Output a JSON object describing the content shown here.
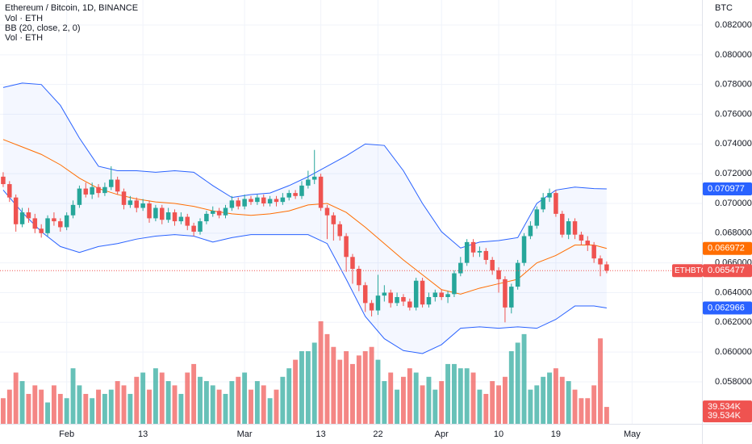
{
  "chart_data": {
    "type": "candlestick",
    "title": "Ethereum / Bitcoin, 1D, BINANCE",
    "legend": [
      "Vol · ETH",
      "BB (20, close, 2, 0)",
      "Vol · ETH"
    ],
    "symbol": "ETHBTC",
    "y_unit": "BTC",
    "up_color": "#26a69a",
    "down_color": "#ef5350",
    "xlim": [
      -0.5,
      110
    ],
    "xticks": [
      {
        "value": 10,
        "label": "Feb"
      },
      {
        "value": 22,
        "label": "13"
      },
      {
        "value": 38,
        "label": "Mar"
      },
      {
        "value": 50,
        "label": "13"
      },
      {
        "value": 59,
        "label": "22"
      },
      {
        "value": 69,
        "label": "Apr"
      },
      {
        "value": 78,
        "label": "10"
      },
      {
        "value": 87,
        "label": "19"
      },
      {
        "value": 99,
        "label": "May"
      }
    ],
    "ylim": [
      0.055174,
      0.083685
    ],
    "yticks": [
      {
        "value": 0.058,
        "label": "0.058000"
      },
      {
        "value": 0.06,
        "label": "0.060000"
      },
      {
        "value": 0.062,
        "label": "0.062000"
      },
      {
        "value": 0.064,
        "label": "0.064000"
      },
      {
        "value": 0.066,
        "label": "0.066000"
      },
      {
        "value": 0.068,
        "label": "0.068000"
      },
      {
        "value": 0.07,
        "label": "0.070000"
      },
      {
        "value": 0.072,
        "label": "0.072000"
      },
      {
        "value": 0.074,
        "label": "0.074000"
      },
      {
        "value": 0.076,
        "label": "0.076000"
      },
      {
        "value": 0.078,
        "label": "0.078000"
      },
      {
        "value": 0.08,
        "label": "0.080000"
      },
      {
        "value": 0.082,
        "label": "0.082000"
      }
    ],
    "grid": true,
    "open": [
      0.0718,
      0.0713,
      0.0704,
      0.0686,
      0.0694,
      0.069,
      0.0683,
      0.068,
      0.069,
      0.0688,
      0.0684,
      0.0692,
      0.0699,
      0.071,
      0.0706,
      0.0711,
      0.0707,
      0.0711,
      0.0716,
      0.0708,
      0.0699,
      0.0702,
      0.0697,
      0.07,
      0.069,
      0.0697,
      0.0689,
      0.0694,
      0.0688,
      0.0691,
      0.0685,
      0.0681,
      0.0688,
      0.0693,
      0.0695,
      0.0692,
      0.0697,
      0.0702,
      0.0698,
      0.0703,
      0.0701,
      0.0704,
      0.07,
      0.0703,
      0.0701,
      0.0704,
      0.0707,
      0.0705,
      0.0712,
      0.0716,
      0.0718,
      0.0697,
      0.0692,
      0.0686,
      0.0678,
      0.0664,
      0.0656,
      0.0645,
      0.0633,
      0.0628,
      0.0638,
      0.064,
      0.0633,
      0.0637,
      0.0634,
      0.063,
      0.0648,
      0.0632,
      0.0637,
      0.064,
      0.0637,
      0.0639,
      0.0653,
      0.066,
      0.0674,
      0.0667,
      0.0668,
      0.0662,
      0.0655,
      0.0649,
      0.063,
      0.0644,
      0.066,
      0.0678,
      0.0685,
      0.0696,
      0.0704,
      0.0707,
      0.0693,
      0.0679,
      0.0688,
      0.0679,
      0.0675,
      0.0672,
      0.0663,
      0.0659
    ],
    "high": [
      0.0721,
      0.0715,
      0.0706,
      0.0697,
      0.0697,
      0.0693,
      0.0686,
      0.0692,
      0.0694,
      0.069,
      0.0694,
      0.0702,
      0.0712,
      0.0714,
      0.0714,
      0.0713,
      0.0714,
      0.0725,
      0.0718,
      0.071,
      0.0705,
      0.0704,
      0.0703,
      0.0702,
      0.0699,
      0.0699,
      0.0697,
      0.0696,
      0.0694,
      0.0693,
      0.0687,
      0.069,
      0.0695,
      0.0698,
      0.0697,
      0.0699,
      0.0705,
      0.0704,
      0.0706,
      0.0705,
      0.0706,
      0.0706,
      0.0705,
      0.0705,
      0.0707,
      0.0709,
      0.0709,
      0.0715,
      0.0722,
      0.0736,
      0.072,
      0.0699,
      0.0694,
      0.0688,
      0.068,
      0.0666,
      0.0658,
      0.0647,
      0.0635,
      0.0652,
      0.0645,
      0.0642,
      0.064,
      0.0639,
      0.0636,
      0.065,
      0.065,
      0.064,
      0.0642,
      0.0642,
      0.0641,
      0.0655,
      0.0664,
      0.0676,
      0.0676,
      0.0671,
      0.067,
      0.0664,
      0.0657,
      0.0651,
      0.0646,
      0.0662,
      0.068,
      0.0688,
      0.0698,
      0.0707,
      0.071,
      0.0709,
      0.0695,
      0.069,
      0.069,
      0.0681,
      0.0678,
      0.0674,
      0.0665,
      0.0661
    ],
    "low": [
      0.0711,
      0.0701,
      0.0681,
      0.0684,
      0.0687,
      0.068,
      0.0677,
      0.0678,
      0.0685,
      0.0681,
      0.0682,
      0.069,
      0.0697,
      0.0704,
      0.0703,
      0.0704,
      0.0705,
      0.0709,
      0.0706,
      0.0696,
      0.0697,
      0.0694,
      0.0695,
      0.0687,
      0.0688,
      0.0686,
      0.0687,
      0.0685,
      0.0686,
      0.0682,
      0.0678,
      0.0679,
      0.0686,
      0.0691,
      0.069,
      0.069,
      0.0695,
      0.0696,
      0.0696,
      0.0699,
      0.0699,
      0.0698,
      0.0698,
      0.0698,
      0.0699,
      0.0702,
      0.0703,
      0.0703,
      0.071,
      0.0713,
      0.0695,
      0.0676,
      0.0675,
      0.0675,
      0.0654,
      0.0646,
      0.0641,
      0.0627,
      0.0624,
      0.0625,
      0.0634,
      0.063,
      0.0631,
      0.0631,
      0.0628,
      0.0628,
      0.063,
      0.063,
      0.0634,
      0.0635,
      0.0633,
      0.0637,
      0.0651,
      0.0658,
      0.0664,
      0.0664,
      0.0659,
      0.0652,
      0.064,
      0.062,
      0.0626,
      0.0642,
      0.0658,
      0.0676,
      0.0683,
      0.0694,
      0.0701,
      0.0691,
      0.0677,
      0.0676,
      0.0676,
      0.0672,
      0.0668,
      0.066,
      0.0651,
      0.0653
    ],
    "close": [
      0.0713,
      0.0704,
      0.0686,
      0.0694,
      0.069,
      0.0683,
      0.068,
      0.069,
      0.0688,
      0.0684,
      0.0692,
      0.0699,
      0.071,
      0.0706,
      0.0711,
      0.0707,
      0.0711,
      0.0716,
      0.0708,
      0.0699,
      0.0702,
      0.0697,
      0.07,
      0.069,
      0.0697,
      0.0689,
      0.0694,
      0.0688,
      0.0691,
      0.0685,
      0.0681,
      0.0688,
      0.0693,
      0.0695,
      0.0692,
      0.0697,
      0.0702,
      0.0698,
      0.0703,
      0.0701,
      0.0704,
      0.07,
      0.0703,
      0.0701,
      0.0704,
      0.0707,
      0.0705,
      0.0712,
      0.0716,
      0.0718,
      0.0697,
      0.0692,
      0.0686,
      0.0678,
      0.0664,
      0.0656,
      0.0645,
      0.0633,
      0.0628,
      0.0638,
      0.064,
      0.0633,
      0.0637,
      0.0634,
      0.063,
      0.0648,
      0.0632,
      0.0637,
      0.064,
      0.0637,
      0.0639,
      0.0653,
      0.066,
      0.0674,
      0.0667,
      0.0668,
      0.0662,
      0.0655,
      0.0649,
      0.063,
      0.0644,
      0.066,
      0.0678,
      0.0685,
      0.0696,
      0.0704,
      0.0707,
      0.0693,
      0.0679,
      0.0688,
      0.0679,
      0.0675,
      0.0672,
      0.0663,
      0.0659,
      0.065477
    ],
    "volume": {
      "values": [
        60,
        80,
        120,
        100,
        70,
        90,
        80,
        50,
        90,
        70,
        60,
        130,
        90,
        70,
        60,
        80,
        70,
        80,
        100,
        90,
        70,
        110,
        120,
        80,
        130,
        120,
        100,
        90,
        70,
        120,
        140,
        110,
        100,
        90,
        80,
        70,
        100,
        110,
        120,
        80,
        100,
        90,
        60,
        80,
        110,
        130,
        150,
        170,
        170,
        190,
        240,
        210,
        180,
        150,
        170,
        140,
        160,
        170,
        180,
        150,
        100,
        120,
        80,
        110,
        130,
        120,
        90,
        110,
        80,
        100,
        140,
        140,
        130,
        130,
        120,
        80,
        70,
        100,
        90,
        110,
        170,
        190,
        210,
        80,
        90,
        110,
        120,
        130,
        110,
        100,
        80,
        60,
        60,
        90,
        200,
        39.534
      ],
      "last_label": "39.534K"
    },
    "bollinger": {
      "x": [
        0,
        3,
        6,
        9,
        12,
        15,
        18,
        21,
        24,
        27,
        30,
        33,
        36,
        39,
        42,
        45,
        48,
        51,
        54,
        57,
        60,
        63,
        66,
        69,
        72,
        75,
        78,
        81,
        84,
        87,
        90,
        93,
        95
      ],
      "upper": [
        0.0778,
        0.0781,
        0.078,
        0.0766,
        0.0744,
        0.0725,
        0.0722,
        0.0722,
        0.0721,
        0.0722,
        0.0721,
        0.0712,
        0.0704,
        0.0706,
        0.0707,
        0.0712,
        0.0718,
        0.0725,
        0.0732,
        0.074,
        0.0739,
        0.0722,
        0.07,
        0.0681,
        0.067,
        0.0674,
        0.0675,
        0.0677,
        0.07,
        0.0709,
        0.0711,
        0.071,
        0.070977
      ],
      "middle": [
        0.0743,
        0.0738,
        0.0733,
        0.0726,
        0.0717,
        0.071,
        0.0706,
        0.0703,
        0.0701,
        0.07,
        0.0698,
        0.0695,
        0.0693,
        0.0692,
        0.0693,
        0.0695,
        0.0699,
        0.07,
        0.0694,
        0.0684,
        0.0673,
        0.0662,
        0.0652,
        0.0642,
        0.0639,
        0.0643,
        0.0646,
        0.0649,
        0.066,
        0.0665,
        0.0672,
        0.0672,
        0.066972
      ],
      "lower": [
        0.0709,
        0.0694,
        0.0681,
        0.0671,
        0.0667,
        0.0671,
        0.0673,
        0.0676,
        0.0678,
        0.0679,
        0.0678,
        0.0674,
        0.0677,
        0.0679,
        0.0679,
        0.0679,
        0.0679,
        0.0673,
        0.0649,
        0.0624,
        0.0609,
        0.0601,
        0.0599,
        0.0605,
        0.0616,
        0.0617,
        0.0616,
        0.0617,
        0.0616,
        0.0622,
        0.0631,
        0.0631,
        0.062966
      ],
      "band_color": "#2962ff",
      "basis_color": "#ff6d00"
    }
  }
}
